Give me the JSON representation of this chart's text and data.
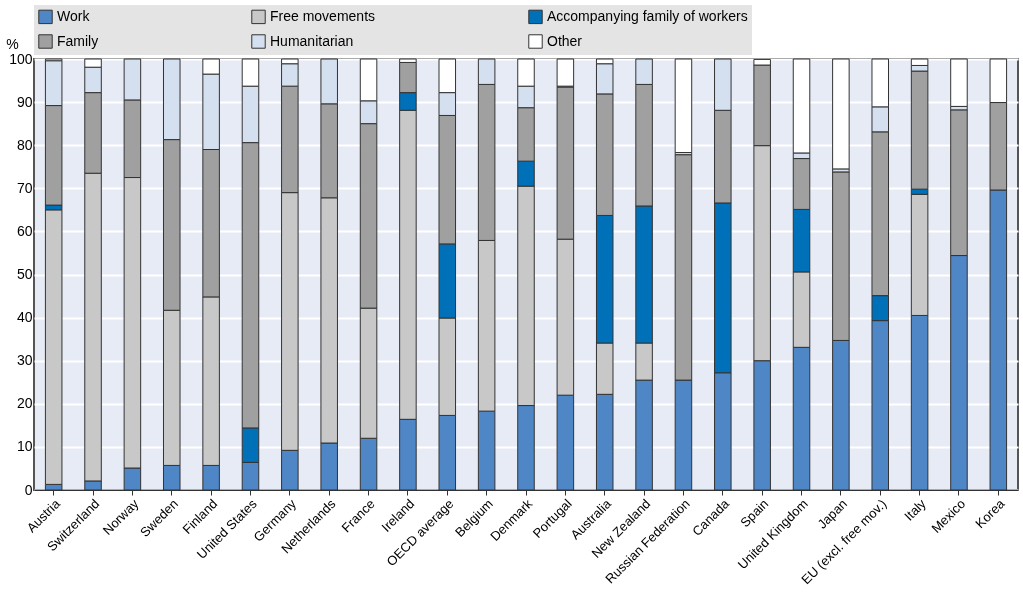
{
  "chart_data": {
    "type": "bar",
    "stacked": true,
    "ylabel": "%",
    "categories": [
      "Austria",
      "Switzerland",
      "Norway",
      "Sweden",
      "Finland",
      "United States",
      "Germany",
      "Netherlands",
      "France",
      "Ireland",
      "OECD average",
      "Belgium",
      "Denmark",
      "Portugal",
      "Australia",
      "New Zealand",
      "Russian Federation",
      "Canada",
      "Spain",
      "United Kingdom",
      "Japan",
      "EU (excl. free mov.)",
      "Italy",
      "Mexico",
      "Korea"
    ],
    "series": [
      {
        "name": "Work",
        "color": "#4f86c6",
        "values": [
          1.3,
          2.1,
          5.1,
          5.7,
          5.7,
          6.4,
          9.2,
          10.9,
          12.0,
          16.4,
          17.3,
          18.3,
          19.6,
          22.0,
          22.2,
          25.5,
          25.5,
          27.2,
          30.0,
          33.1,
          34.7,
          39.3,
          40.5,
          54.4,
          69.6
        ]
      },
      {
        "name": "Free movements",
        "color": "#c8c8c8",
        "values": [
          63.7,
          71.4,
          67.4,
          36.0,
          39.1,
          0,
          59.8,
          56.9,
          30.2,
          71.7,
          22.6,
          39.6,
          50.9,
          36.2,
          11.9,
          8.6,
          0,
          0,
          49.9,
          17.5,
          0,
          0,
          28.1,
          0,
          0
        ]
      },
      {
        "name": "Accompanying family of workers",
        "color": "#0070b8",
        "values": [
          1.1,
          0,
          0,
          0,
          0,
          8.0,
          0,
          0,
          0,
          4.1,
          17.2,
          0,
          5.8,
          0,
          29.6,
          31.8,
          0,
          39.4,
          0,
          14.5,
          0,
          5.8,
          1.2,
          0,
          0
        ]
      },
      {
        "name": "Family",
        "color": "#a0a0a0",
        "values": [
          23.1,
          18.7,
          18.0,
          39.6,
          34.2,
          66.2,
          24.7,
          21.8,
          42.8,
          7.0,
          29.8,
          36.2,
          12.4,
          35.3,
          28.2,
          28.2,
          52.3,
          21.5,
          18.7,
          11.8,
          39.1,
          38.0,
          27.4,
          33.8,
          20.3
        ]
      },
      {
        "name": "Humanitarian",
        "color": "#d4dff0",
        "values": [
          10.4,
          5.9,
          9.5,
          18.7,
          17.5,
          13.1,
          5.2,
          10.4,
          5.3,
          0,
          5.3,
          5.9,
          5.0,
          0.2,
          7.0,
          5.9,
          0.5,
          11.9,
          0,
          1.3,
          0.7,
          5.8,
          1.3,
          0.8,
          0
        ]
      },
      {
        "name": "Other",
        "color": "#ffffff",
        "values": [
          0.4,
          1.9,
          0,
          0,
          3.5,
          6.3,
          1.1,
          0,
          9.7,
          0.8,
          7.8,
          0,
          6.3,
          6.3,
          1.1,
          0,
          21.7,
          0,
          1.3,
          21.8,
          25.5,
          11.1,
          1.5,
          11.0,
          10.1
        ]
      }
    ],
    "ylim": [
      0,
      100
    ],
    "yticks": [
      0,
      10,
      20,
      30,
      40,
      50,
      60,
      70,
      80,
      90,
      100
    ],
    "grid": true,
    "legend": "top"
  }
}
